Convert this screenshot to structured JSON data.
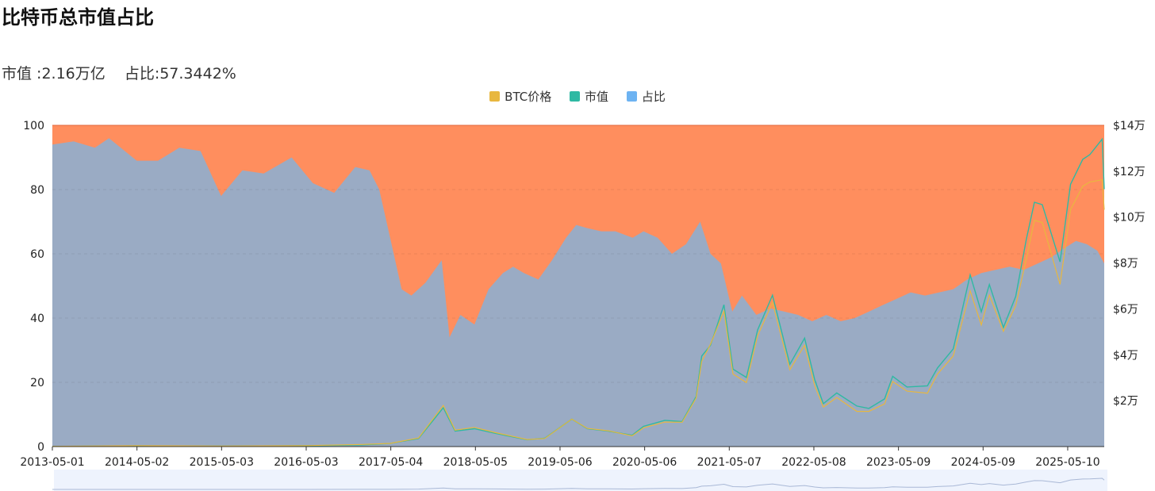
{
  "page": {
    "title": "比特币总市值占比",
    "subtitle": {
      "marketcap_label": "市值 :",
      "marketcap_value": "2.16万亿",
      "dominance_label": "占比:",
      "dominance_value": "57.3442%"
    }
  },
  "chart_data": {
    "type": "area",
    "legend": [
      "BTC价格",
      "市值",
      "占比"
    ],
    "colors": {
      "btc_price": "#e8b73f",
      "market_cap": "#2fb9a3",
      "dominance": "#6db3f2",
      "dominance_area": "#9aabc4",
      "remainder_area": "#ff8e5e",
      "slider_bg": "#eef3fd"
    },
    "x_ticks": [
      "2013-05-01",
      "2014-05-02",
      "2015-05-03",
      "2016-05-03",
      "2017-05-04",
      "2018-05-05",
      "2019-05-06",
      "2020-05-06",
      "2021-05-07",
      "2022-05-08",
      "2023-05-09",
      "2024-05-09",
      "2025-05-10"
    ],
    "y_left": {
      "ticks": [
        "0",
        "20",
        "40",
        "60",
        "80",
        "100"
      ],
      "range": [
        0,
        100
      ]
    },
    "y_right": {
      "ticks": [
        "$2万",
        "$4万",
        "$6万",
        "$8万",
        "$10万",
        "$12万",
        "$14万"
      ],
      "range": [
        0,
        140000
      ]
    },
    "series": [
      {
        "name": "占比",
        "x": [
          "2013-05-01",
          "2013-08-01",
          "2013-11-01",
          "2014-01-01",
          "2014-05-01",
          "2014-08-01",
          "2014-11-01",
          "2015-02-01",
          "2015-05-01",
          "2015-08-01",
          "2015-11-01",
          "2016-03-01",
          "2016-06-01",
          "2016-09-01",
          "2016-12-01",
          "2017-02-01",
          "2017-03-15",
          "2017-05-01",
          "2017-06-20",
          "2017-08-01",
          "2017-10-01",
          "2017-12-10",
          "2018-01-13",
          "2018-03-01",
          "2018-05-01",
          "2018-07-01",
          "2018-09-01",
          "2018-10-15",
          "2018-12-01",
          "2019-02-01",
          "2019-04-01",
          "2019-06-01",
          "2019-07-15",
          "2019-09-01",
          "2019-11-01",
          "2020-01-01",
          "2020-03-15",
          "2020-05-01",
          "2020-07-01",
          "2020-09-01",
          "2020-11-01",
          "2021-01-01",
          "2021-02-15",
          "2021-04-01",
          "2021-05-20",
          "2021-07-01",
          "2021-09-01",
          "2021-11-01",
          "2022-01-01",
          "2022-03-01",
          "2022-05-01",
          "2022-07-01",
          "2022-09-01",
          "2022-11-01",
          "2023-01-01",
          "2023-03-01",
          "2023-05-01",
          "2023-07-01",
          "2023-09-01",
          "2023-11-01",
          "2024-01-01",
          "2024-03-01",
          "2024-05-01",
          "2024-07-01",
          "2024-09-01",
          "2024-11-01",
          "2025-01-01",
          "2025-03-01",
          "2025-05-01",
          "2025-06-15",
          "2025-08-01",
          "2025-09-15",
          "2025-10-15"
        ],
        "values": [
          94,
          95,
          93,
          96,
          89,
          89,
          93,
          92,
          78,
          86,
          85,
          90,
          82,
          79,
          87,
          86,
          80,
          65,
          49,
          47,
          51,
          58,
          34,
          41,
          38,
          49,
          54,
          56,
          54,
          52,
          58,
          65,
          69,
          68,
          67,
          67,
          65,
          67,
          65,
          60,
          63,
          70,
          60,
          57,
          42,
          47,
          41,
          43,
          42,
          41,
          39,
          41,
          39,
          40,
          42,
          44,
          46,
          48,
          47,
          48,
          49,
          52,
          54,
          55,
          56,
          55,
          57,
          59,
          62,
          64,
          63,
          61,
          57
        ]
      },
      {
        "name": "市值",
        "x": [
          "2013-05-01",
          "2014-05-01",
          "2015-05-01",
          "2016-05-01",
          "2017-01-01",
          "2017-05-01",
          "2017-09-01",
          "2017-12-17",
          "2018-02-06",
          "2018-05-01",
          "2018-08-01",
          "2018-12-15",
          "2019-03-01",
          "2019-06-26",
          "2019-09-01",
          "2019-12-01",
          "2020-03-13",
          "2020-05-01",
          "2020-08-01",
          "2020-10-15",
          "2020-12-15",
          "2021-01-08",
          "2021-02-15",
          "2021-04-14",
          "2021-05-23",
          "2021-07-20",
          "2021-09-07",
          "2021-11-10",
          "2022-01-24",
          "2022-03-29",
          "2022-05-12",
          "2022-06-18",
          "2022-08-15",
          "2022-11-10",
          "2023-01-01",
          "2023-03-10",
          "2023-04-14",
          "2023-06-15",
          "2023-09-11",
          "2023-10-25",
          "2024-01-01",
          "2024-03-14",
          "2024-05-01",
          "2024-06-05",
          "2024-08-05",
          "2024-09-27",
          "2024-11-12",
          "2024-12-17",
          "2025-01-20",
          "2025-04-07",
          "2025-05-22",
          "2025-07-14",
          "2025-08-14",
          "2025-10-06",
          "2025-10-15"
        ],
        "values": [
          1.3,
          5.7,
          3.1,
          7.3,
          14,
          26,
          68,
          326,
          130,
          150,
          110,
          57,
          70,
          230,
          150,
          130,
          95,
          170,
          220,
          210,
          420,
          760,
          850,
          1190,
          650,
          580,
          980,
          1270,
          690,
          910,
          560,
          360,
          450,
          340,
          320,
          400,
          590,
          500,
          510,
          660,
          820,
          1440,
          1130,
          1360,
          1000,
          1260,
          1740,
          2050,
          2030,
          1550,
          2200,
          2410,
          2450,
          2580,
          2160
        ]
      },
      {
        "name": "BTC价格",
        "x": [
          "2013-05-01",
          "2014-05-01",
          "2015-05-01",
          "2016-05-01",
          "2017-01-01",
          "2017-05-01",
          "2017-09-01",
          "2017-12-17",
          "2018-02-06",
          "2018-05-01",
          "2018-08-01",
          "2018-12-15",
          "2019-03-01",
          "2019-06-26",
          "2019-09-01",
          "2019-12-01",
          "2020-03-13",
          "2020-05-01",
          "2020-08-01",
          "2020-10-15",
          "2020-12-15",
          "2021-01-08",
          "2021-02-15",
          "2021-04-14",
          "2021-05-23",
          "2021-07-20",
          "2021-09-07",
          "2021-11-10",
          "2022-01-24",
          "2022-03-29",
          "2022-05-12",
          "2022-06-18",
          "2022-08-15",
          "2022-11-10",
          "2023-01-01",
          "2023-03-10",
          "2023-04-14",
          "2023-06-15",
          "2023-09-11",
          "2023-10-25",
          "2024-01-01",
          "2024-03-14",
          "2024-05-01",
          "2024-06-05",
          "2024-08-05",
          "2024-09-27",
          "2024-11-12",
          "2024-12-17",
          "2025-01-20",
          "2025-04-07",
          "2025-05-22",
          "2025-07-14",
          "2025-08-14",
          "2025-10-06",
          "2025-10-15"
        ],
        "values": [
          116,
          430,
          230,
          450,
          1000,
          1500,
          4000,
          19300,
          7700,
          9000,
          6500,
          3300,
          3800,
          12900,
          8500,
          7400,
          5000,
          8800,
          11500,
          11400,
          22800,
          40000,
          48000,
          63500,
          34000,
          30000,
          52000,
          67500,
          36000,
          47500,
          28500,
          18500,
          23000,
          16500,
          16500,
          20000,
          30500,
          26000,
          25000,
          34000,
          42500,
          73000,
          57000,
          71000,
          54000,
          66000,
          88000,
          106000,
          105000,
          76000,
          111000,
          122000,
          124000,
          125000,
          111000
        ]
      }
    ]
  }
}
